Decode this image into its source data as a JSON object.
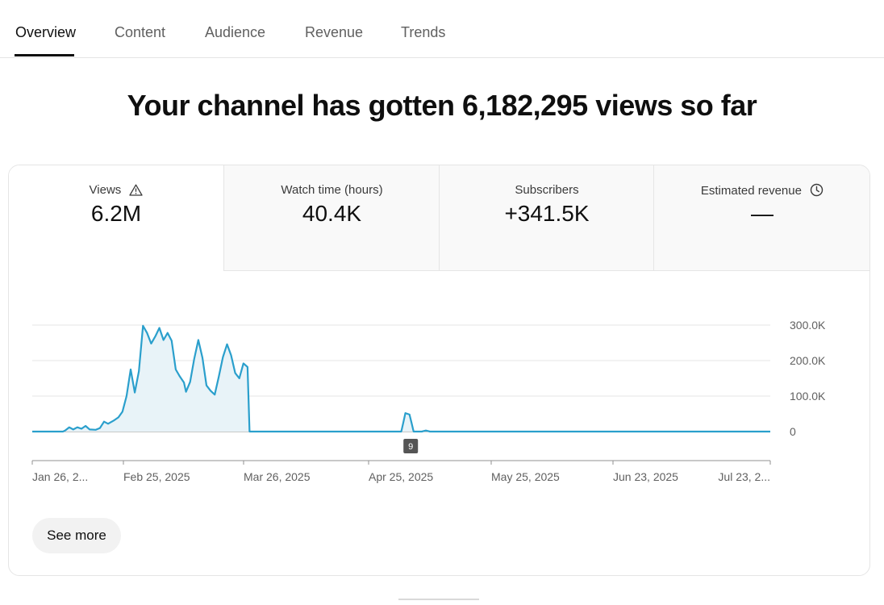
{
  "tabs": [
    {
      "label": "Overview",
      "active": true
    },
    {
      "label": "Content",
      "active": false
    },
    {
      "label": "Audience",
      "active": false
    },
    {
      "label": "Revenue",
      "active": false
    },
    {
      "label": "Trends",
      "active": false
    }
  ],
  "headline": "Your channel has gotten 6,182,295 views so far",
  "metrics": [
    {
      "label": "Views",
      "value": "6.2M",
      "icon": "warning-icon",
      "selected": true
    },
    {
      "label": "Watch time (hours)",
      "value": "40.4K",
      "icon": null,
      "selected": false
    },
    {
      "label": "Subscribers",
      "value": "+341.5K",
      "icon": null,
      "selected": false
    },
    {
      "label": "Estimated revenue",
      "value": "—",
      "icon": "clock-icon",
      "selected": false
    }
  ],
  "chart_data": {
    "type": "area",
    "series": [
      {
        "values": [
          [
            0,
            0
          ],
          [
            4,
            0
          ],
          [
            8,
            0
          ],
          [
            12,
            0
          ],
          [
            15,
            0
          ],
          [
            16,
            3000
          ],
          [
            18,
            12000
          ],
          [
            20,
            6000
          ],
          [
            22,
            12000
          ],
          [
            24,
            8000
          ],
          [
            26,
            16000
          ],
          [
            28,
            6000
          ],
          [
            31,
            5000
          ],
          [
            33,
            10000
          ],
          [
            35,
            28000
          ],
          [
            37,
            22000
          ],
          [
            40,
            32000
          ],
          [
            42,
            40000
          ],
          [
            44,
            56000
          ],
          [
            46,
            100000
          ],
          [
            48,
            175000
          ],
          [
            50,
            110000
          ],
          [
            52,
            170000
          ],
          [
            54,
            298000
          ],
          [
            56,
            278000
          ],
          [
            58,
            248000
          ],
          [
            60,
            268000
          ],
          [
            62,
            292000
          ],
          [
            64,
            258000
          ],
          [
            66,
            278000
          ],
          [
            68,
            256000
          ],
          [
            70,
            175000
          ],
          [
            72,
            155000
          ],
          [
            74,
            138000
          ],
          [
            75,
            112000
          ],
          [
            77,
            140000
          ],
          [
            79,
            205000
          ],
          [
            81,
            258000
          ],
          [
            83,
            208000
          ],
          [
            85,
            130000
          ],
          [
            87,
            115000
          ],
          [
            89,
            104000
          ],
          [
            91,
            155000
          ],
          [
            93,
            210000
          ],
          [
            95,
            246000
          ],
          [
            97,
            215000
          ],
          [
            99,
            165000
          ],
          [
            101,
            150000
          ],
          [
            103,
            192000
          ],
          [
            105,
            182000
          ],
          [
            106,
            0
          ],
          [
            110,
            0
          ],
          [
            150,
            0
          ],
          [
            180,
            0
          ],
          [
            181,
            25000
          ],
          [
            182,
            52000
          ],
          [
            184,
            48000
          ],
          [
            185,
            25000
          ],
          [
            186,
            0
          ],
          [
            190,
            0
          ],
          [
            192,
            3000
          ],
          [
            194,
            0
          ],
          [
            240,
            0
          ],
          [
            300,
            0
          ],
          [
            360,
            0
          ]
        ]
      }
    ],
    "y_ticks": [
      "300.0K",
      "200.0K",
      "100.0K",
      "0"
    ],
    "ylim": [
      0,
      300000
    ],
    "x_ticks": [
      "Jan 26, 2...",
      "Feb 25, 2025",
      "Mar 26, 2025",
      "Apr 25, 2025",
      "May 25, 2025",
      "Jun 23, 2025",
      "Jul 23, 2..."
    ],
    "x_range": [
      "Jan 26, 2025",
      "Jul 23, 2025"
    ],
    "annotation": "9",
    "line_color": "#2a9fcc",
    "fill_color": "#e8f3f8"
  },
  "see_more_label": "See more"
}
